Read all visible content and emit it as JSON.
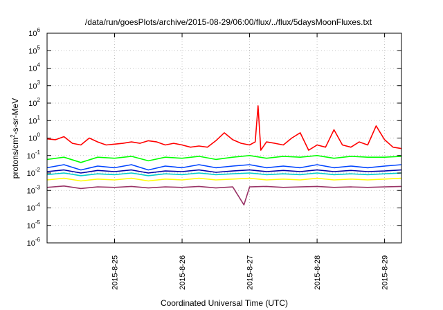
{
  "chart_data": {
    "type": "line",
    "title": "/data/run/goesPlots/archive/2015-08-29/06:00/flux/../flux/5daysMoonFluxes.txt",
    "xlabel": "Coordinated Universal Time (UTC)",
    "ylabel": {
      "prefix": "protons/cm",
      "sup": "2",
      "suffix": "-s-sr-MeV"
    },
    "yscale": "log",
    "ylim": [
      1e-06,
      1000000.0
    ],
    "xlim": [
      "2015-08-24T00:00",
      "2015-08-29T06:00"
    ],
    "grid": true,
    "y_ticks": [
      {
        "value": 1e-06,
        "base": "10",
        "exp": "-6"
      },
      {
        "value": 1e-05,
        "base": "10",
        "exp": "-5"
      },
      {
        "value": 0.0001,
        "base": "10",
        "exp": "-4"
      },
      {
        "value": 0.001,
        "base": "10",
        "exp": "-3"
      },
      {
        "value": 0.01,
        "base": "10",
        "exp": "-2"
      },
      {
        "value": 0.1,
        "base": "10",
        "exp": "-1"
      },
      {
        "value": 1,
        "base": "10",
        "exp": "0"
      },
      {
        "value": 10,
        "base": "10",
        "exp": "1"
      },
      {
        "value": 100,
        "base": "10",
        "exp": "2"
      },
      {
        "value": 1000,
        "base": "10",
        "exp": "3"
      },
      {
        "value": 10000,
        "base": "10",
        "exp": "4"
      },
      {
        "value": 100000,
        "base": "10",
        "exp": "5"
      },
      {
        "value": 1000000,
        "base": "10",
        "exp": "6"
      }
    ],
    "x_ticks": [
      {
        "value": "2015-08-25T00:00",
        "label": "2015-8-25"
      },
      {
        "value": "2015-08-26T00:00",
        "label": "2015-8-26"
      },
      {
        "value": "2015-08-27T00:00",
        "label": "2015-8-27"
      },
      {
        "value": "2015-08-28T00:00",
        "label": "2015-8-28"
      },
      {
        "value": "2015-08-29T00:00",
        "label": "2015-8-29"
      }
    ],
    "series": [
      {
        "color": "#ff0000",
        "x": [
          "2015-08-24T00:00",
          "2015-08-24T03:00",
          "2015-08-24T06:00",
          "2015-08-24T09:00",
          "2015-08-24T12:00",
          "2015-08-24T15:00",
          "2015-08-24T18:00",
          "2015-08-24T21:00",
          "2015-08-25T00:00",
          "2015-08-25T03:00",
          "2015-08-25T06:00",
          "2015-08-25T09:00",
          "2015-08-25T12:00",
          "2015-08-25T15:00",
          "2015-08-25T18:00",
          "2015-08-25T21:00",
          "2015-08-26T00:00",
          "2015-08-26T03:00",
          "2015-08-26T06:00",
          "2015-08-26T09:00",
          "2015-08-26T12:00",
          "2015-08-26T15:00",
          "2015-08-26T18:00",
          "2015-08-26T21:00",
          "2015-08-27T00:00",
          "2015-08-27T02:00",
          "2015-08-27T03:00",
          "2015-08-27T04:00",
          "2015-08-27T06:00",
          "2015-08-27T09:00",
          "2015-08-27T12:00",
          "2015-08-27T15:00",
          "2015-08-27T18:00",
          "2015-08-27T21:00",
          "2015-08-28T00:00",
          "2015-08-28T03:00",
          "2015-08-28T06:00",
          "2015-08-28T09:00",
          "2015-08-28T12:00",
          "2015-08-28T15:00",
          "2015-08-28T18:00",
          "2015-08-28T21:00",
          "2015-08-29T00:00",
          "2015-08-29T03:00",
          "2015-08-29T06:00"
        ],
        "values": [
          0.9,
          0.8,
          1.2,
          0.5,
          0.4,
          1.0,
          0.6,
          0.4,
          0.45,
          0.5,
          0.6,
          0.5,
          0.7,
          0.6,
          0.4,
          0.5,
          0.4,
          0.3,
          0.35,
          0.3,
          0.7,
          2.0,
          0.8,
          0.5,
          0.4,
          0.6,
          70,
          0.2,
          0.6,
          0.5,
          0.4,
          1.0,
          2.0,
          0.2,
          0.4,
          0.3,
          3.0,
          0.4,
          0.3,
          0.6,
          0.4,
          5.0,
          0.8,
          0.3,
          0.25
        ]
      },
      {
        "color": "#00ff00",
        "x": [
          "2015-08-24T00:00",
          "2015-08-24T06:00",
          "2015-08-24T12:00",
          "2015-08-24T18:00",
          "2015-08-25T00:00",
          "2015-08-25T06:00",
          "2015-08-25T12:00",
          "2015-08-25T18:00",
          "2015-08-26T00:00",
          "2015-08-26T06:00",
          "2015-08-26T12:00",
          "2015-08-26T18:00",
          "2015-08-27T00:00",
          "2015-08-27T06:00",
          "2015-08-27T12:00",
          "2015-08-27T18:00",
          "2015-08-28T00:00",
          "2015-08-28T06:00",
          "2015-08-28T12:00",
          "2015-08-28T18:00",
          "2015-08-29T00:00",
          "2015-08-29T06:00"
        ],
        "values": [
          0.06,
          0.08,
          0.04,
          0.08,
          0.07,
          0.09,
          0.05,
          0.08,
          0.07,
          0.09,
          0.06,
          0.08,
          0.1,
          0.07,
          0.09,
          0.08,
          0.1,
          0.07,
          0.09,
          0.08,
          0.08,
          0.09
        ]
      },
      {
        "color": "#0044ff",
        "x": [
          "2015-08-24T00:00",
          "2015-08-24T06:00",
          "2015-08-24T12:00",
          "2015-08-24T18:00",
          "2015-08-25T00:00",
          "2015-08-25T06:00",
          "2015-08-25T12:00",
          "2015-08-25T18:00",
          "2015-08-26T00:00",
          "2015-08-26T06:00",
          "2015-08-26T12:00",
          "2015-08-26T18:00",
          "2015-08-27T00:00",
          "2015-08-27T06:00",
          "2015-08-27T12:00",
          "2015-08-27T18:00",
          "2015-08-28T00:00",
          "2015-08-28T06:00",
          "2015-08-28T12:00",
          "2015-08-28T18:00",
          "2015-08-29T00:00",
          "2015-08-29T06:00"
        ],
        "values": [
          0.02,
          0.03,
          0.015,
          0.025,
          0.02,
          0.03,
          0.015,
          0.025,
          0.02,
          0.03,
          0.02,
          0.025,
          0.03,
          0.02,
          0.025,
          0.02,
          0.03,
          0.02,
          0.025,
          0.02,
          0.025,
          0.03
        ]
      },
      {
        "color": "#00cccc",
        "x": [
          "2015-08-24T00:00",
          "2015-08-24T06:00",
          "2015-08-24T12:00",
          "2015-08-24T18:00",
          "2015-08-25T00:00",
          "2015-08-25T06:00",
          "2015-08-25T12:00",
          "2015-08-25T18:00",
          "2015-08-26T00:00",
          "2015-08-26T06:00",
          "2015-08-26T12:00",
          "2015-08-26T18:00",
          "2015-08-27T00:00",
          "2015-08-27T06:00",
          "2015-08-27T12:00",
          "2015-08-27T18:00",
          "2015-08-28T00:00",
          "2015-08-28T06:00",
          "2015-08-28T12:00",
          "2015-08-28T18:00",
          "2015-08-29T00:00",
          "2015-08-29T06:00"
        ],
        "values": [
          0.008,
          0.01,
          0.007,
          0.009,
          0.008,
          0.01,
          0.007,
          0.009,
          0.008,
          0.01,
          0.008,
          0.009,
          0.01,
          0.008,
          0.009,
          0.008,
          0.01,
          0.008,
          0.009,
          0.008,
          0.009,
          0.01
        ]
      },
      {
        "color": "#0000aa",
        "x": [
          "2015-08-24T00:00",
          "2015-08-24T06:00",
          "2015-08-24T12:00",
          "2015-08-24T18:00",
          "2015-08-25T00:00",
          "2015-08-25T06:00",
          "2015-08-25T12:00",
          "2015-08-25T18:00",
          "2015-08-26T00:00",
          "2015-08-26T06:00",
          "2015-08-26T12:00",
          "2015-08-26T18:00",
          "2015-08-27T00:00",
          "2015-08-27T06:00",
          "2015-08-27T12:00",
          "2015-08-27T18:00",
          "2015-08-28T00:00",
          "2015-08-28T06:00",
          "2015-08-28T12:00",
          "2015-08-28T18:00",
          "2015-08-29T00:00",
          "2015-08-29T06:00"
        ],
        "values": [
          0.012,
          0.015,
          0.01,
          0.014,
          0.012,
          0.015,
          0.01,
          0.013,
          0.012,
          0.015,
          0.011,
          0.013,
          0.015,
          0.012,
          0.014,
          0.012,
          0.015,
          0.012,
          0.014,
          0.012,
          0.013,
          0.015
        ]
      },
      {
        "color": "#ffff00",
        "x": [
          "2015-08-24T00:00",
          "2015-08-24T06:00",
          "2015-08-24T12:00",
          "2015-08-24T18:00",
          "2015-08-25T00:00",
          "2015-08-25T06:00",
          "2015-08-25T12:00",
          "2015-08-25T18:00",
          "2015-08-26T00:00",
          "2015-08-26T06:00",
          "2015-08-26T12:00",
          "2015-08-26T18:00",
          "2015-08-27T00:00",
          "2015-08-27T06:00",
          "2015-08-27T12:00",
          "2015-08-27T18:00",
          "2015-08-28T00:00",
          "2015-08-28T06:00",
          "2015-08-28T12:00",
          "2015-08-28T18:00",
          "2015-08-29T00:00",
          "2015-08-29T06:00"
        ],
        "values": [
          0.004,
          0.005,
          0.0035,
          0.0045,
          0.004,
          0.005,
          0.0035,
          0.0045,
          0.004,
          0.005,
          0.004,
          0.0045,
          0.005,
          0.004,
          0.0045,
          0.004,
          0.005,
          0.004,
          0.0045,
          0.004,
          0.0045,
          0.005
        ]
      },
      {
        "color": "#993366",
        "x": [
          "2015-08-24T00:00",
          "2015-08-24T06:00",
          "2015-08-24T12:00",
          "2015-08-24T18:00",
          "2015-08-25T00:00",
          "2015-08-25T06:00",
          "2015-08-25T12:00",
          "2015-08-25T18:00",
          "2015-08-26T00:00",
          "2015-08-26T06:00",
          "2015-08-26T12:00",
          "2015-08-26T18:00",
          "2015-08-26T22:00",
          "2015-08-27T00:00",
          "2015-08-27T06:00",
          "2015-08-27T12:00",
          "2015-08-27T18:00",
          "2015-08-28T00:00",
          "2015-08-28T06:00",
          "2015-08-28T12:00",
          "2015-08-28T18:00",
          "2015-08-29T00:00",
          "2015-08-29T06:00"
        ],
        "values": [
          0.0015,
          0.0018,
          0.0013,
          0.0016,
          0.0015,
          0.0017,
          0.0014,
          0.0016,
          0.0015,
          0.0017,
          0.0014,
          0.0016,
          0.00015,
          0.0016,
          0.0017,
          0.0015,
          0.0016,
          0.0017,
          0.0015,
          0.0016,
          0.0015,
          0.0016,
          0.0017
        ]
      }
    ]
  }
}
